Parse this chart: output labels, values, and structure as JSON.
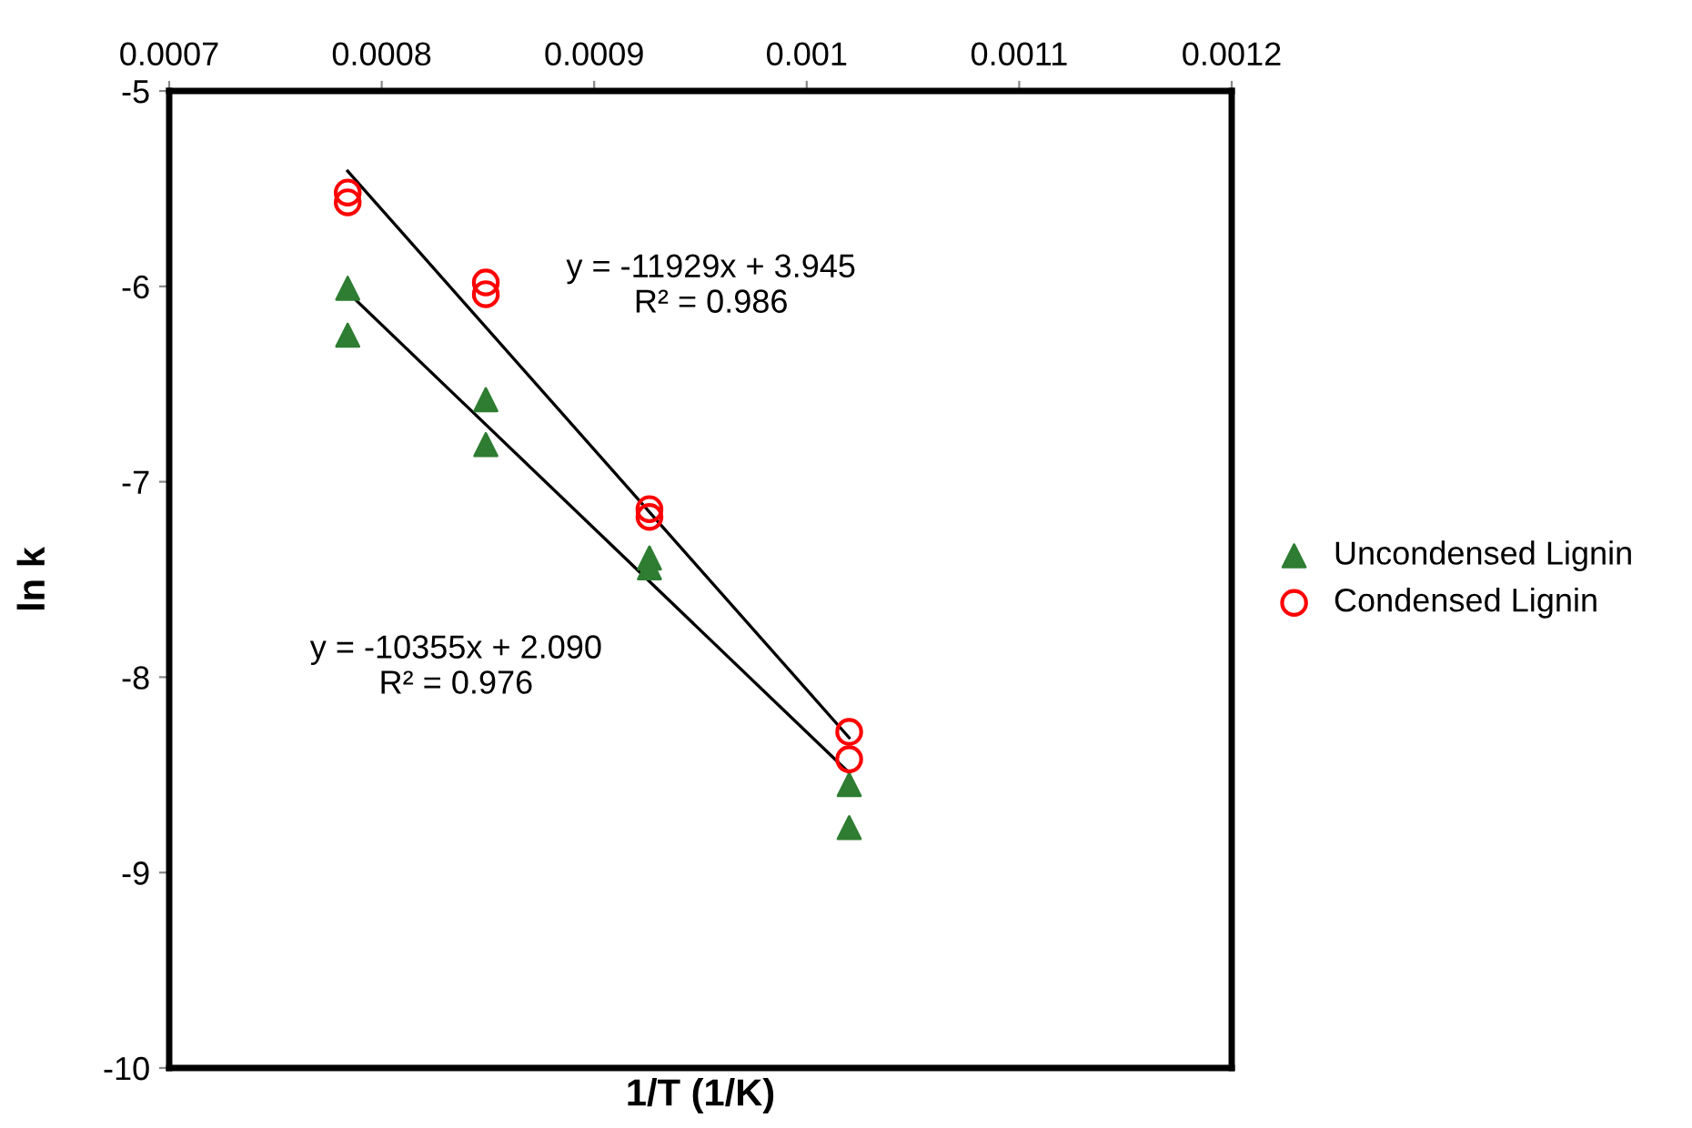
{
  "chart_data": {
    "type": "scatter",
    "xlabel": "1/T (1/K)",
    "ylabel": "ln k",
    "xlim": [
      0.0007,
      0.0012
    ],
    "xticks": [
      0.0007,
      0.0008,
      0.0009,
      0.001,
      0.0011,
      0.0012
    ],
    "ylim": [
      -10,
      -5
    ],
    "yticks": [
      -10,
      -9,
      -8,
      -7,
      -6,
      -5
    ],
    "grid": false,
    "legend": "right",
    "series": [
      {
        "name": "Uncondensed Lignin",
        "marker": "triangle",
        "color": "#2e7d32",
        "x": [
          0.000784,
          0.000784,
          0.000849,
          0.000849,
          0.000926,
          0.000926,
          0.00102,
          0.00102
        ],
        "values": [
          -6.01,
          -6.25,
          -6.58,
          -6.81,
          -7.39,
          -7.44,
          -8.55,
          -8.77
        ]
      },
      {
        "name": "Condensed Lignin",
        "marker": "circle",
        "color": "#ff0000",
        "x": [
          0.000784,
          0.000784,
          0.000849,
          0.000849,
          0.000926,
          0.000926,
          0.00102,
          0.00102
        ],
        "values": [
          -5.52,
          -5.57,
          -5.98,
          -6.04,
          -7.14,
          -7.18,
          -8.28,
          -8.42
        ]
      },
      {
        "type": "line",
        "color": "#000000",
        "marker": "none",
        "x": [
          0.000784,
          0.00102
        ],
        "values": [
          -5.41,
          -8.31
        ]
      },
      {
        "type": "line",
        "color": "#000000",
        "marker": "none",
        "x": [
          0.000784,
          0.00102
        ],
        "values": [
          -6.03,
          -8.49
        ]
      }
    ],
    "annotations": [
      "y = -11929x + 3.945\nR² = 0.986",
      "y = -10355x + 2.090\nR² = 0.976"
    ]
  }
}
